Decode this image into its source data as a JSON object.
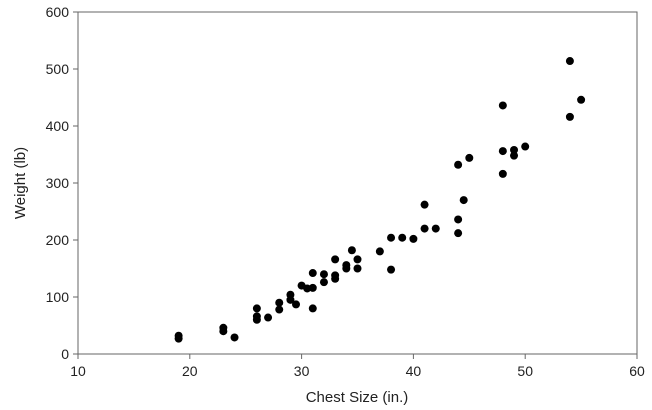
{
  "chart_data": {
    "type": "scatter",
    "title": "",
    "xlabel": "Chest Size (in.)",
    "ylabel": "Weight (lb)",
    "xlim": [
      10,
      60
    ],
    "ylim": [
      0,
      600
    ],
    "xticks": [
      "10",
      "20",
      "30",
      "40",
      "50",
      "60"
    ],
    "yticks": [
      "0",
      "100",
      "200",
      "300",
      "400",
      "500",
      "600"
    ],
    "grid": false,
    "legend": "none",
    "marker_color": "#000000",
    "axis_color": "#666666",
    "points": [
      [
        19,
        27
      ],
      [
        19,
        32
      ],
      [
        23,
        40
      ],
      [
        23,
        46
      ],
      [
        24,
        29
      ],
      [
        26,
        60
      ],
      [
        26,
        66
      ],
      [
        26,
        80
      ],
      [
        27,
        64
      ],
      [
        28,
        78
      ],
      [
        28,
        90
      ],
      [
        29,
        95
      ],
      [
        29,
        104
      ],
      [
        29.5,
        87
      ],
      [
        30,
        120
      ],
      [
        30.5,
        115
      ],
      [
        31,
        80
      ],
      [
        31,
        116
      ],
      [
        31,
        142
      ],
      [
        32,
        126
      ],
      [
        32,
        140
      ],
      [
        33,
        132
      ],
      [
        33,
        138
      ],
      [
        33,
        166
      ],
      [
        34,
        150
      ],
      [
        34,
        156
      ],
      [
        34.5,
        182
      ],
      [
        35,
        150
      ],
      [
        35,
        166
      ],
      [
        37,
        180
      ],
      [
        38,
        148
      ],
      [
        38,
        204
      ],
      [
        39,
        204
      ],
      [
        40,
        202
      ],
      [
        41,
        220
      ],
      [
        41,
        262
      ],
      [
        42,
        220
      ],
      [
        44,
        212
      ],
      [
        44,
        236
      ],
      [
        44,
        332
      ],
      [
        44.5,
        270
      ],
      [
        45,
        344
      ],
      [
        48,
        316
      ],
      [
        48,
        356
      ],
      [
        48,
        436
      ],
      [
        49,
        348
      ],
      [
        49,
        358
      ],
      [
        50,
        364
      ],
      [
        54,
        416
      ],
      [
        54,
        514
      ],
      [
        55,
        446
      ]
    ]
  }
}
